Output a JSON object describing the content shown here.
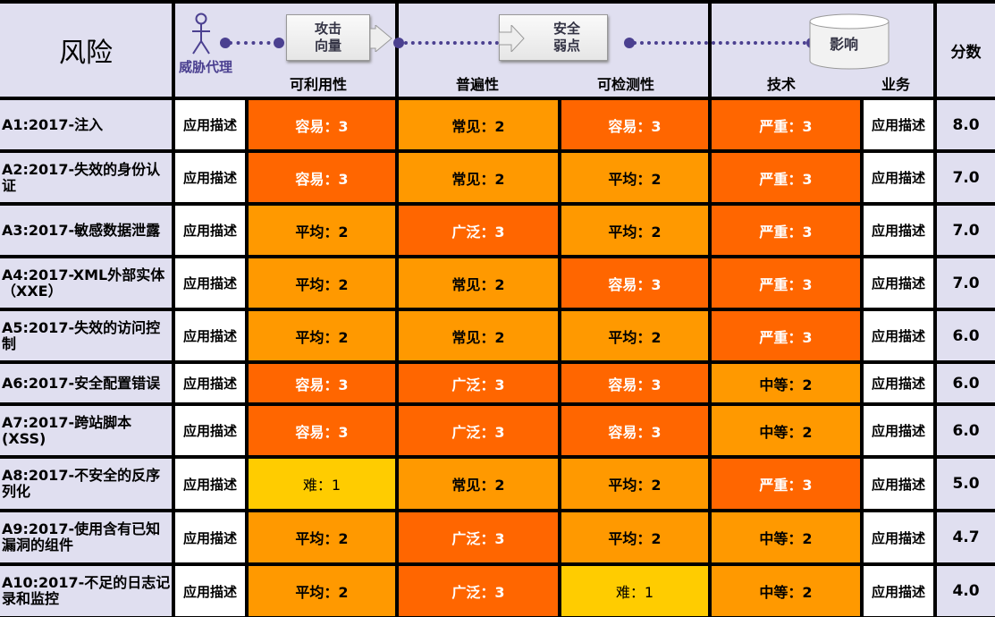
{
  "header": {
    "risk": "风险",
    "threat_agent": "威胁代理",
    "attack_vector": "攻击\n向量",
    "exploitability": "可利用性",
    "security_weakness": "安全\n弱点",
    "prevalence": "普遍性",
    "detectability": "可检测性",
    "impact": "影响",
    "technical": "技术",
    "business": "业务",
    "score": "分数"
  },
  "colors": {
    "level3": "#ff6600",
    "level2": "#ff9900",
    "level1": "#ffcc00",
    "header_bg": "#e0dff0",
    "diagram": "#4b4090"
  },
  "rows": [
    {
      "risk": "A1:2017-注入",
      "agent": "应用描述",
      "exploit": "容易：3",
      "ex_lvl": 3,
      "prev": "常见：2",
      "pv_lvl": 2,
      "detect": "容易：3",
      "dt_lvl": 3,
      "tech": "严重：3",
      "tc_lvl": 3,
      "business": "应用描述",
      "score": "8.0"
    },
    {
      "risk": "A2:2017-失效的身份认证",
      "agent": "应用描述",
      "exploit": "容易：3",
      "ex_lvl": 3,
      "prev": "常见：2",
      "pv_lvl": 2,
      "detect": "平均：2",
      "dt_lvl": 2,
      "tech": "严重：3",
      "tc_lvl": 3,
      "business": "应用描述",
      "score": "7.0"
    },
    {
      "risk": "A3:2017-敏感数据泄露",
      "agent": "应用描述",
      "exploit": "平均：2",
      "ex_lvl": 2,
      "prev": "广泛：3",
      "pv_lvl": 3,
      "detect": "平均：2",
      "dt_lvl": 2,
      "tech": "严重：3",
      "tc_lvl": 3,
      "business": "应用描述",
      "score": "7.0"
    },
    {
      "risk": "A4:2017-XML外部实体（XXE）",
      "agent": "应用描述",
      "exploit": "平均：2",
      "ex_lvl": 2,
      "prev": "常见：2",
      "pv_lvl": 2,
      "detect": "容易：3",
      "dt_lvl": 3,
      "tech": "严重：3",
      "tc_lvl": 3,
      "business": "应用描述",
      "score": "7.0"
    },
    {
      "risk": "A5:2017-失效的访问控制",
      "agent": "应用描述",
      "exploit": "平均：2",
      "ex_lvl": 2,
      "prev": "常见：2",
      "pv_lvl": 2,
      "detect": "平均：2",
      "dt_lvl": 2,
      "tech": "严重：3",
      "tc_lvl": 3,
      "business": "应用描述",
      "score": "6.0"
    },
    {
      "risk": "A6:2017-安全配置错误",
      "agent": "应用描述",
      "exploit": "容易：3",
      "ex_lvl": 3,
      "prev": "广泛：3",
      "pv_lvl": 3,
      "detect": "容易：3",
      "dt_lvl": 3,
      "tech": "中等：2",
      "tc_lvl": 2,
      "business": "应用描述",
      "score": "6.0"
    },
    {
      "risk": "A7:2017-跨站脚本(XSS)",
      "agent": "应用描述",
      "exploit": "容易：3",
      "ex_lvl": 3,
      "prev": "广泛：3",
      "pv_lvl": 3,
      "detect": "容易：3",
      "dt_lvl": 3,
      "tech": "中等：2",
      "tc_lvl": 2,
      "business": "应用描述",
      "score": "6.0"
    },
    {
      "risk": "A8:2017-不安全的反序列化",
      "agent": "应用描述",
      "exploit": "难：1",
      "ex_lvl": 1,
      "prev": "常见：2",
      "pv_lvl": 2,
      "detect": "平均：2",
      "dt_lvl": 2,
      "tech": "严重：3",
      "tc_lvl": 3,
      "business": "应用描述",
      "score": "5.0"
    },
    {
      "risk": "A9:2017-使用含有已知漏洞的组件",
      "agent": "应用描述",
      "exploit": "平均：2",
      "ex_lvl": 2,
      "prev": "广泛：3",
      "pv_lvl": 3,
      "detect": "平均：2",
      "dt_lvl": 2,
      "tech": "中等：2",
      "tc_lvl": 2,
      "business": "应用描述",
      "score": "4.7"
    },
    {
      "risk": "A10:2017-不足的日志记录和监控",
      "agent": "应用描述",
      "exploit": "平均：2",
      "ex_lvl": 2,
      "prev": "广泛：3",
      "pv_lvl": 3,
      "detect": "难：1",
      "dt_lvl": 1,
      "tech": "中等：2",
      "tc_lvl": 2,
      "business": "应用描述",
      "score": "4.0"
    }
  ]
}
